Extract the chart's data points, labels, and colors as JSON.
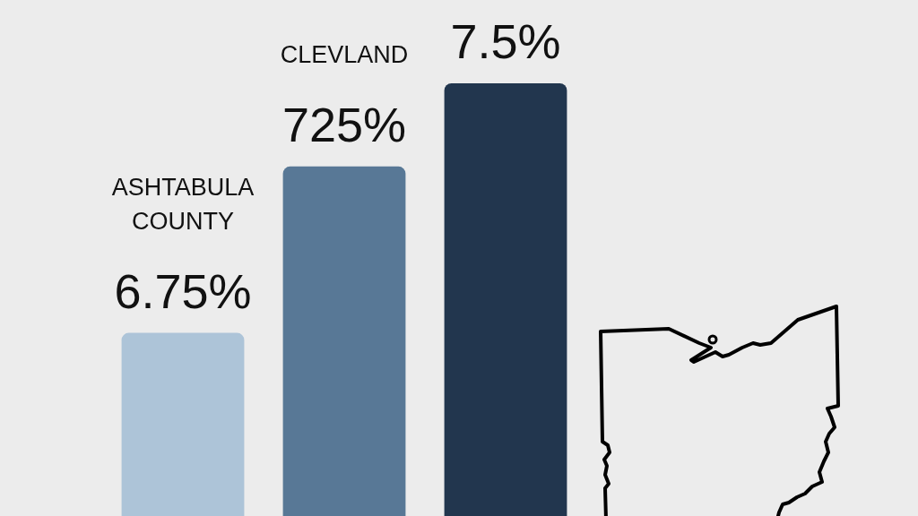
{
  "chart_data": {
    "type": "bar",
    "categories": [
      "ASHTABULA COUNTY",
      "CLEVLAND",
      null
    ],
    "values": [
      6.75,
      7.25,
      7.5
    ],
    "colors": [
      "#adc4d8",
      "#587896",
      "#22364e"
    ],
    "value_labels": [
      "6.75%",
      "725%",
      "7.5%"
    ],
    "ylim": [
      6.2,
      7.75
    ],
    "tick_labels": false
  }
}
